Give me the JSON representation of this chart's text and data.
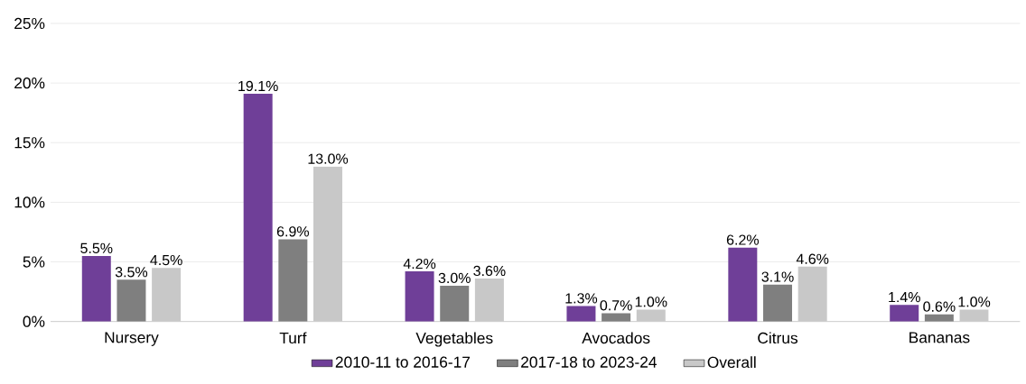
{
  "chart_data": {
    "type": "bar",
    "categories": [
      "Nursery",
      "Turf",
      "Vegetables",
      "Avocados",
      "Citrus",
      "Bananas"
    ],
    "series": [
      {
        "name": "2010-11 to 2016-17",
        "color": "#6f3f98",
        "values": [
          5.5,
          19.1,
          4.2,
          1.3,
          6.2,
          1.4
        ],
        "value_labels": [
          "5.5%",
          "19.1%",
          "4.2%",
          "1.3%",
          "6.2%",
          "1.4%"
        ]
      },
      {
        "name": "2017-18 to 2023-24",
        "color": "#7f7f7f",
        "values": [
          3.5,
          6.9,
          3.0,
          0.7,
          3.1,
          0.6
        ],
        "value_labels": [
          "3.5%",
          "6.9%",
          "3.0%",
          "0.7%",
          "3.1%",
          "0.6%"
        ]
      },
      {
        "name": "Overall",
        "color": "#c8c8c8",
        "values": [
          4.5,
          13.0,
          3.6,
          1.0,
          4.6,
          1.0
        ],
        "value_labels": [
          "4.5%",
          "13.0%",
          "3.6%",
          "1.0%",
          "4.6%",
          "1.0%"
        ]
      }
    ],
    "ylim": [
      0,
      25
    ],
    "yticks": [
      {
        "value": 0,
        "label": "0%"
      },
      {
        "value": 5,
        "label": "5%"
      },
      {
        "value": 10,
        "label": "10%"
      },
      {
        "value": 15,
        "label": "15%"
      },
      {
        "value": 20,
        "label": "20%"
      },
      {
        "value": 25,
        "label": "25%"
      }
    ],
    "grid": "y",
    "legend": "bottom"
  }
}
